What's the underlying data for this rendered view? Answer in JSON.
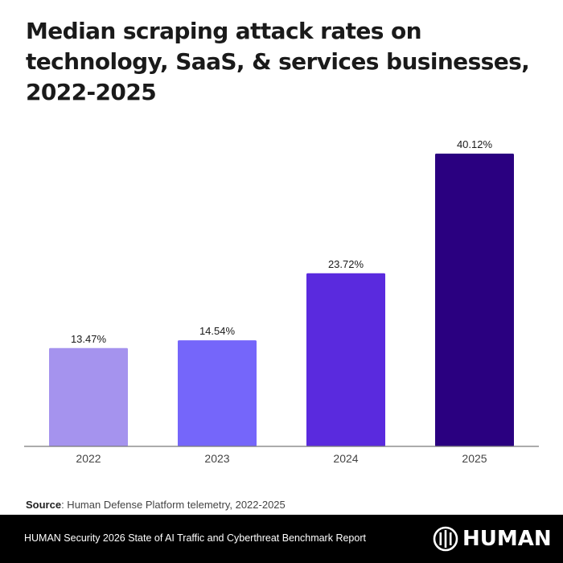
{
  "title": "Median scraping attack rates on technology, SaaS, & services businesses, 2022-2025",
  "source": {
    "label": "Source",
    "text": ": Human Defense Platform telemetry, 2022-2025"
  },
  "footer": {
    "report_text": "HUMAN Security 2026 State of AI Traffic and Cyberthreat Benchmark Report",
    "logo_text": "HUMAN",
    "logo_icon": "human-logo-icon"
  },
  "chart_data": {
    "type": "bar",
    "title": "Median scraping attack rates on technology, SaaS, & services businesses, 2022-2025",
    "xlabel": "",
    "ylabel": "",
    "categories": [
      "2022",
      "2023",
      "2024",
      "2025"
    ],
    "values": [
      13.47,
      14.54,
      23.72,
      40.12
    ],
    "value_labels": [
      "13.47%",
      "14.54%",
      "23.72%",
      "40.12%"
    ],
    "colors": [
      "#a593ee",
      "#7566fa",
      "#5a2ade",
      "#2a0080"
    ],
    "unit": "%",
    "ylim": [
      0,
      40.12
    ],
    "grid": false,
    "legend": "none",
    "axis_color": "#7a7a7a"
  }
}
